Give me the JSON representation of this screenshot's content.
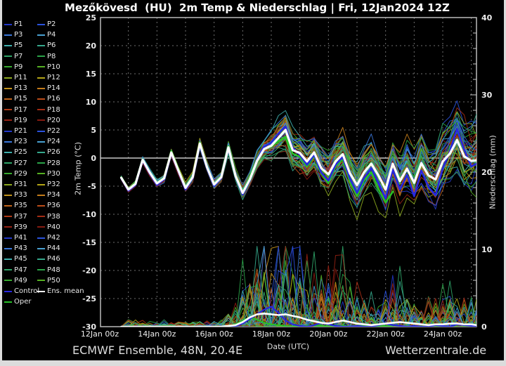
{
  "title": "Mezőkövesd  (HU)  2m Temp & Niederschlag | Fri, 12Jan2024 12Z",
  "footer": {
    "left": "ECMWF Ensemble, 48N, 20.4E",
    "right": "Wetterzentrale.de"
  },
  "colors": {
    "background": "#000000",
    "frame": "#c8c8c8",
    "grid": "#6f6f6f",
    "zero_line": "#c8c8c8",
    "tick_text": "#eeeeee",
    "control": "#2727e0",
    "ens_mean": "#ffffff",
    "oper": "#27c127",
    "member_palette": [
      "#2238c8",
      "#2a52dc",
      "#3a76d8",
      "#49a0d0",
      "#3fb0ae",
      "#35a88c",
      "#2fa468",
      "#2aa348",
      "#36aa2e",
      "#55b022",
      "#8ca81e",
      "#b3a516",
      "#c2921a",
      "#c47c1a",
      "#c2641a",
      "#bc4c18",
      "#b03a16",
      "#a42c14",
      "#952113",
      "#851a10"
    ]
  },
  "legend": {
    "member_labels": [
      "P1",
      "P2",
      "P3",
      "P4",
      "P5",
      "P6",
      "P7",
      "P8",
      "P9",
      "P10",
      "P11",
      "P12",
      "P13",
      "P14",
      "P15",
      "P16",
      "P17",
      "P18",
      "P19",
      "P20",
      "P21",
      "P22",
      "P23",
      "P24",
      "P25",
      "P26",
      "P27",
      "P28",
      "P29",
      "P30",
      "P31",
      "P32",
      "P33",
      "P34",
      "P35",
      "P36",
      "P37",
      "P38",
      "P39",
      "P40",
      "P41",
      "P42",
      "P43",
      "P44",
      "P45",
      "P46",
      "P47",
      "P48",
      "P49",
      "P50"
    ],
    "special": [
      {
        "label": "Control",
        "color": "#2727e0"
      },
      {
        "label": "Ens. mean",
        "color": "#ffffff"
      },
      {
        "label": "Oper",
        "color": "#27c127"
      }
    ]
  },
  "chart_data": {
    "type": "line",
    "title": "Mezőkövesd  (HU)  2m Temp & Niederschlag | Fri, 12Jan2024 12Z",
    "xlabel": "Date (UTC)",
    "ylabel_left": "2m Temp (°C)",
    "ylabel_right": "Niederschlag (mm)",
    "ylim_left": [
      -30,
      25
    ],
    "ylim_right": [
      0,
      40
    ],
    "x_range_days": [
      0,
      13.18
    ],
    "grid": true,
    "legend_position": "left",
    "x_tick_days": [
      0,
      2,
      4,
      6,
      8,
      10,
      12
    ],
    "x_tick_labels": [
      "12Jan 00z",
      "14Jan 00z",
      "16Jan 00z",
      "18Jan 00z",
      "20Jan 00z",
      "22Jan 00z",
      "24Jan 00z"
    ],
    "y_ticks_left": [
      25,
      20,
      15,
      10,
      5,
      0,
      -5,
      -10,
      -15,
      -20,
      -25,
      -30
    ],
    "y_ticks_right": [
      40,
      30,
      20,
      10,
      0
    ],
    "n_members": 50,
    "time_days": [
      0.75,
      1.0,
      1.25,
      1.5,
      1.75,
      2.0,
      2.25,
      2.5,
      2.75,
      3.0,
      3.25,
      3.5,
      3.75,
      4.0,
      4.25,
      4.5,
      4.75,
      5.0,
      5.25,
      5.5,
      5.75,
      6.0,
      6.25,
      6.5,
      6.75,
      7.0,
      7.25,
      7.5,
      7.75,
      8.0,
      8.25,
      8.5,
      8.75,
      9.0,
      9.25,
      9.5,
      9.75,
      10.0,
      10.25,
      10.5,
      10.75,
      11.0,
      11.25,
      11.5,
      11.75,
      12.0,
      12.25,
      12.5,
      12.75,
      13.0,
      13.25
    ],
    "ens_mean_temp": [
      -3.5,
      -5.6,
      -4.6,
      -0.3,
      -2.6,
      -4.5,
      -3.6,
      1.0,
      -2.2,
      -5.3,
      -3.4,
      2.6,
      -1.6,
      -4.7,
      -3.4,
      1.9,
      -3.2,
      -6.2,
      -3.8,
      -0.5,
      1.6,
      2.2,
      3.6,
      5.0,
      1.4,
      0.9,
      -0.6,
      1.0,
      -1.8,
      -2.9,
      -0.6,
      0.7,
      -2.7,
      -4.8,
      -2.5,
      -1.0,
      -3.1,
      -5.6,
      -1.0,
      -4.1,
      -1.9,
      -4.4,
      -0.9,
      -3.1,
      -3.8,
      -0.6,
      0.8,
      3.2,
      0.3,
      -0.5,
      -0.4
    ],
    "control_temp": [
      -3.6,
      -5.8,
      -4.8,
      -0.5,
      -2.8,
      -4.8,
      -3.8,
      0.8,
      -2.4,
      -5.6,
      -3.6,
      2.4,
      -1.8,
      -5.0,
      -3.6,
      1.7,
      -3.4,
      -6.5,
      -4.0,
      -0.2,
      2.0,
      2.8,
      4.4,
      5.6,
      1.8,
      0.6,
      -1.2,
      0.6,
      -2.6,
      -4.0,
      -1.2,
      0.2,
      -3.6,
      -6.2,
      -3.5,
      -1.8,
      -4.4,
      -7.2,
      -2.0,
      -5.6,
      -3.0,
      -6.8,
      -2.2,
      -5.2,
      -6.6,
      -1.8,
      1.2,
      5.2,
      1.5,
      -1.5,
      -1.0
    ],
    "oper_temp": [
      -3.4,
      -5.5,
      -4.5,
      -0.2,
      -2.5,
      -4.4,
      -3.5,
      1.2,
      -2.0,
      -5.1,
      -3.2,
      2.8,
      -1.4,
      -4.6,
      -3.2,
      2.1,
      -3.0,
      -6.0,
      -3.5,
      0.0,
      1.8,
      2.0,
      3.0,
      3.8,
      0.8,
      0.2,
      -1.5,
      0.4,
      -2.8,
      -4.5,
      -1.5,
      -0.2,
      -4.2,
      -6.8,
      -4.0,
      -2.5,
      -5.5,
      -7.9,
      -6.0,
      null,
      null,
      null,
      null,
      null,
      null,
      null,
      null,
      null,
      null,
      null,
      null
    ],
    "ens_mean_precip": [
      0,
      0,
      0,
      0,
      0,
      0,
      0,
      0,
      0,
      0,
      0,
      0,
      0,
      0,
      0,
      0.1,
      0.2,
      0.6,
      1.2,
      1.6,
      1.7,
      1.6,
      1.5,
      1.6,
      1.4,
      1.2,
      0.9,
      0.7,
      0.5,
      0.4,
      0.6,
      0.8,
      0.6,
      0.4,
      0.3,
      0.2,
      0.3,
      0.4,
      0.5,
      0.6,
      0.5,
      0.4,
      0.3,
      0.2,
      0.3,
      0.3,
      0.4,
      0.4,
      0.3,
      0.3,
      0.2
    ],
    "control_precip": [
      0,
      0,
      0,
      0,
      0,
      0,
      0,
      0,
      0,
      0,
      0,
      0,
      0,
      0,
      0,
      0,
      0.1,
      0.4,
      1.0,
      1.6,
      2.2,
      2.6,
      1.8,
      0.8,
      0.3,
      0.1,
      0,
      0.2,
      0.5,
      0.3,
      0.1,
      0,
      0,
      0.1,
      0,
      0,
      0.2,
      0.4,
      0.2,
      0.1,
      0,
      0.1,
      0,
      0,
      0.2,
      0.1,
      0,
      0.3,
      0.2,
      0.1,
      0
    ],
    "oper_precip": [
      0,
      0,
      0,
      0,
      0,
      0,
      0,
      0,
      0,
      0,
      0,
      0,
      0,
      0,
      0,
      0.1,
      0.3,
      0.8,
      1.2,
      0.9,
      0.5,
      0.3,
      0.2,
      0.1,
      0,
      0,
      0.1,
      0.2,
      0.1,
      0,
      0,
      0.1,
      0,
      0,
      0.1,
      0,
      0,
      0.1,
      0,
      null,
      null,
      null,
      null,
      null,
      null,
      null,
      null,
      null,
      null,
      null,
      null
    ],
    "ensemble_spread_temp": [
      0.5,
      0.6,
      0.6,
      0.6,
      0.7,
      0.7,
      0.7,
      0.8,
      0.8,
      0.8,
      0.9,
      0.9,
      0.9,
      1.0,
      1.0,
      1.1,
      1.2,
      1.4,
      1.7,
      2.0,
      2.4,
      2.8,
      3.2,
      3.5,
      3.6,
      3.7,
      3.8,
      3.8,
      3.9,
      4.0,
      4.0,
      4.1,
      4.2,
      4.3,
      4.4,
      4.5,
      4.6,
      4.7,
      4.8,
      5.0,
      5.1,
      5.2,
      5.3,
      5.4,
      5.5,
      5.6,
      5.7,
      5.8,
      5.9,
      6.0,
      6.0
    ],
    "precip_activity": [
      0,
      0.06,
      0.06,
      0.06,
      0.06,
      0.06,
      0.06,
      0.06,
      0.06,
      0.06,
      0.06,
      0.06,
      0.06,
      0.06,
      0.06,
      0.15,
      0.3,
      0.5,
      0.7,
      0.9,
      1.0,
      1.0,
      1.0,
      0.95,
      0.9,
      0.85,
      0.8,
      0.7,
      0.6,
      0.55,
      0.6,
      0.7,
      0.55,
      0.4,
      0.3,
      0.25,
      0.3,
      0.35,
      0.4,
      0.45,
      0.4,
      0.35,
      0.3,
      0.28,
      0.3,
      0.32,
      0.35,
      0.35,
      0.3,
      0.3,
      0.25
    ]
  }
}
